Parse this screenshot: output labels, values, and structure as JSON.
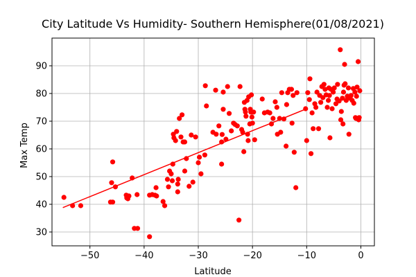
{
  "chart_data": {
    "type": "scatter",
    "title": "City Latitude Vs Humidity- Southern Hemisphere(01/08/2021)",
    "xlabel": "Latitude",
    "ylabel": "Max Temp",
    "xlim": [
      -57,
      2.5
    ],
    "ylim": [
      25,
      100
    ],
    "xticks": [
      -50,
      -40,
      -30,
      -20,
      -10,
      0
    ],
    "yticks": [
      30,
      40,
      50,
      60,
      70,
      80,
      90
    ],
    "grid": true,
    "point_color": "#ff0000",
    "line_color": "#ff0000",
    "regression_line": {
      "x": [
        -55,
        -10
      ],
      "y": [
        38.8,
        74.5
      ]
    },
    "points": [
      [
        -54.8,
        42.5
      ],
      [
        -53.2,
        39.5
      ],
      [
        -51.7,
        39.5
      ],
      [
        -46.2,
        40.8
      ],
      [
        -45.8,
        40.8
      ],
      [
        -46.0,
        47.8
      ],
      [
        -45.8,
        55.3
      ],
      [
        -45.3,
        46.3
      ],
      [
        -43.3,
        43.3
      ],
      [
        -43.2,
        42.3
      ],
      [
        -43.0,
        42.0
      ],
      [
        -42.8,
        43.0
      ],
      [
        -42.2,
        49.5
      ],
      [
        -41.8,
        31.3
      ],
      [
        -41.2,
        31.3
      ],
      [
        -41.3,
        43.5
      ],
      [
        -39.0,
        28.3
      ],
      [
        -39.0,
        43.3
      ],
      [
        -38.5,
        43.5
      ],
      [
        -38.0,
        43.3
      ],
      [
        -37.8,
        46.0
      ],
      [
        -37.7,
        43.0
      ],
      [
        -36.5,
        41.0
      ],
      [
        -36.2,
        39.5
      ],
      [
        -35.7,
        49.0
      ],
      [
        -35.5,
        46.3
      ],
      [
        -35.3,
        52.0
      ],
      [
        -35.0,
        51.0
      ],
      [
        -34.8,
        48.5
      ],
      [
        -34.7,
        54.5
      ],
      [
        -34.6,
        65.3
      ],
      [
        -34.5,
        64.0
      ],
      [
        -34.2,
        63.0
      ],
      [
        -34.0,
        66.3
      ],
      [
        -33.8,
        44.5
      ],
      [
        -33.8,
        47.3
      ],
      [
        -33.7,
        49.0
      ],
      [
        -33.5,
        71.0
      ],
      [
        -33.2,
        64.3
      ],
      [
        -33.0,
        72.3
      ],
      [
        -32.8,
        62.5
      ],
      [
        -32.5,
        62.5
      ],
      [
        -32.5,
        52.0
      ],
      [
        -32.2,
        56.5
      ],
      [
        -31.7,
        46.5
      ],
      [
        -31.3,
        65.0
      ],
      [
        -31.0,
        48.0
      ],
      [
        -30.5,
        64.3
      ],
      [
        -30.0,
        55.0
      ],
      [
        -29.8,
        57.0
      ],
      [
        -29.5,
        51.0
      ],
      [
        -28.8,
        57.8
      ],
      [
        -28.7,
        82.8
      ],
      [
        -28.5,
        75.5
      ],
      [
        -27.3,
        66.0
      ],
      [
        -26.8,
        81.2
      ],
      [
        -26.7,
        65.3
      ],
      [
        -26.2,
        68.3
      ],
      [
        -25.7,
        54.5
      ],
      [
        -25.7,
        62.5
      ],
      [
        -25.6,
        65.2
      ],
      [
        -25.4,
        74.3
      ],
      [
        -25.4,
        80.5
      ],
      [
        -24.9,
        63.5
      ],
      [
        -24.6,
        82.5
      ],
      [
        -24.3,
        72.8
      ],
      [
        -23.9,
        66.5
      ],
      [
        -23.5,
        69.3
      ],
      [
        -23.2,
        68.8
      ],
      [
        -22.8,
        68.3
      ],
      [
        -22.5,
        34.3
      ],
      [
        -22.3,
        82.5
      ],
      [
        -22.0,
        67.0
      ],
      [
        -21.8,
        66.0
      ],
      [
        -21.6,
        59.0
      ],
      [
        -21.5,
        76.8
      ],
      [
        -21.4,
        74.3
      ],
      [
        -21.3,
        73.3
      ],
      [
        -21.2,
        71.8
      ],
      [
        -21.0,
        77.5
      ],
      [
        -20.9,
        65.3
      ],
      [
        -20.8,
        63.0
      ],
      [
        -20.7,
        78.8
      ],
      [
        -20.5,
        69.0
      ],
      [
        -20.4,
        74.3
      ],
      [
        -20.3,
        73.3
      ],
      [
        -20.2,
        79.5
      ],
      [
        -20.1,
        71.5
      ],
      [
        -20.0,
        69.3
      ],
      [
        -19.8,
        73.3
      ],
      [
        -19.6,
        63.3
      ],
      [
        -18.2,
        78.0
      ],
      [
        -17.8,
        73.0
      ],
      [
        -17.2,
        73.3
      ],
      [
        -16.8,
        73.0
      ],
      [
        -16.5,
        69.0
      ],
      [
        -16.2,
        71.0
      ],
      [
        -15.8,
        77.0
      ],
      [
        -15.5,
        75.0
      ],
      [
        -15.4,
        65.3
      ],
      [
        -15.0,
        71.0
      ],
      [
        -14.8,
        66.0
      ],
      [
        -14.6,
        80.3
      ],
      [
        -14.2,
        70.8
      ],
      [
        -13.8,
        61.0
      ],
      [
        -13.7,
        76.0
      ],
      [
        -13.5,
        80.3
      ],
      [
        -13.2,
        81.5
      ],
      [
        -12.8,
        81.5
      ],
      [
        -12.7,
        69.3
      ],
      [
        -12.5,
        79.3
      ],
      [
        -12.3,
        58.8
      ],
      [
        -12.0,
        46.0
      ],
      [
        -11.8,
        80.3
      ],
      [
        -10.2,
        74.5
      ],
      [
        -10.0,
        63.0
      ],
      [
        -9.8,
        80.3
      ],
      [
        -9.5,
        77.8
      ],
      [
        -9.4,
        85.3
      ],
      [
        -9.2,
        58.3
      ],
      [
        -9.0,
        73.0
      ],
      [
        -8.8,
        67.3
      ],
      [
        -8.5,
        76.3
      ],
      [
        -8.3,
        75.0
      ],
      [
        -8.1,
        80.5
      ],
      [
        -7.8,
        67.3
      ],
      [
        -7.6,
        79.3
      ],
      [
        -7.4,
        76.8
      ],
      [
        -7.2,
        82.5
      ],
      [
        -7.0,
        78.5
      ],
      [
        -6.8,
        83.3
      ],
      [
        -6.6,
        81.5
      ],
      [
        -6.4,
        79.5
      ],
      [
        -6.2,
        75.0
      ],
      [
        -6.0,
        77.5
      ],
      [
        -5.9,
        82.0
      ],
      [
        -5.8,
        79.3
      ],
      [
        -5.7,
        64.0
      ],
      [
        -5.5,
        81.5
      ],
      [
        -5.3,
        74.5
      ],
      [
        -5.1,
        80.5
      ],
      [
        -4.9,
        82.0
      ],
      [
        -4.6,
        76.3
      ],
      [
        -4.4,
        78.0
      ],
      [
        -4.3,
        83.3
      ],
      [
        -4.0,
        77.3
      ],
      [
        -3.8,
        95.8
      ],
      [
        -3.7,
        70.5
      ],
      [
        -3.6,
        73.5
      ],
      [
        -3.4,
        78.3
      ],
      [
        -3.3,
        69.0
      ],
      [
        -3.2,
        80.5
      ],
      [
        -3.1,
        83.0
      ],
      [
        -3.0,
        90.5
      ],
      [
        -2.9,
        83.5
      ],
      [
        -2.7,
        77.5
      ],
      [
        -2.5,
        79.0
      ],
      [
        -2.3,
        82.0
      ],
      [
        -2.2,
        65.3
      ],
      [
        -2.0,
        78.3
      ],
      [
        -1.8,
        79.3
      ],
      [
        -1.6,
        77.5
      ],
      [
        -1.4,
        81.8
      ],
      [
        -1.3,
        76.5
      ],
      [
        -1.1,
        80.5
      ],
      [
        -1.0,
        71.3
      ],
      [
        -0.9,
        71.0
      ],
      [
        -0.8,
        79.0
      ],
      [
        -0.7,
        82.3
      ],
      [
        -0.5,
        91.5
      ],
      [
        -0.4,
        70.5
      ],
      [
        -0.3,
        71.3
      ],
      [
        -0.2,
        81.0
      ]
    ]
  }
}
